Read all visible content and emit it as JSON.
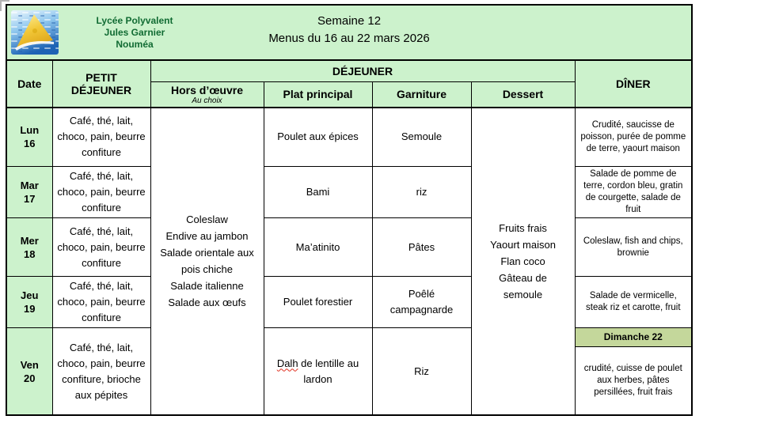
{
  "header": {
    "school_name": [
      "Lycée Polyvalent",
      "Jules Garnier",
      "Nouméa"
    ],
    "week_title": "Semaine 12",
    "date_range": "Menus du 16 au 22 mars 2026",
    "logo_icon": "sail-and-waves-school-logo"
  },
  "table": {
    "col_headers": {
      "date": "Date",
      "breakfast": "PETIT DÉJEUNER",
      "lunch_group": "DÉJEUNER",
      "starter": "Hors d’œuvre",
      "starter_note": "Au choix",
      "main": "Plat principal",
      "side": "Garniture",
      "dessert": "Dessert",
      "dinner": "DÎNER"
    },
    "starters": [
      "Coleslaw",
      "Endive au jambon",
      "Salade orientale aux pois chiche",
      "Salade italienne",
      "Salade aux œufs"
    ],
    "desserts": [
      "Fruits frais",
      "Yaourt maison",
      "Flan coco",
      "Gâteau de semoule"
    ],
    "rows": [
      {
        "day": "Lun",
        "num": "16",
        "breakfast": "Café, thé, lait, choco, pain, beurre confiture",
        "main": "Poulet aux épices",
        "side": "Semoule",
        "dinner": "Crudité, saucisse de poisson, purée de pomme de terre, yaourt maison"
      },
      {
        "day": "Mar",
        "num": "17",
        "breakfast": "Café, thé, lait, choco, pain, beurre confiture",
        "main": "Bami",
        "side": "riz",
        "dinner": "Salade de pomme de terre, cordon bleu, gratin de courgette, salade de fruit"
      },
      {
        "day": "Mer",
        "num": "18",
        "breakfast": "Café, thé, lait, choco, pain, beurre confiture",
        "main": "Ma’atinito",
        "side": "Pâtes",
        "dinner": "Coleslaw, fish and chips, brownie"
      },
      {
        "day": "Jeu",
        "num": "19",
        "breakfast": "Café, thé, lait, choco, pain, beurre confiture",
        "main": "Poulet forestier",
        "side": "Poêlé campagnarde",
        "dinner": "Salade de vermicelle, steak riz et carotte, fruit"
      },
      {
        "day": "Ven",
        "num": "20",
        "breakfast": "Café, thé, lait, choco, pain, beurre confiture, brioche aux pépites",
        "main_word": "Dalh",
        "main_rest": " de lentille au lardon",
        "side": "Riz",
        "dinner_header": "Dimanche 22",
        "dinner": "crudité, cuisse de poulet aux herbes, pâtes persillées, fruit frais"
      }
    ],
    "colors": {
      "cell_green": "#ccf2cc",
      "sunday_band_green": "#c4d79b",
      "school_name_green": "#116b33",
      "border_black": "#000000",
      "spellcheck_red": "#e03020"
    }
  }
}
